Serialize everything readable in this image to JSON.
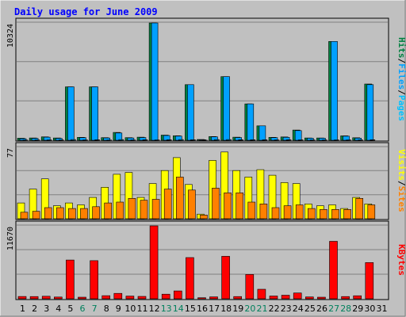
{
  "chart_data": [
    {
      "type": "bar",
      "panel": "top",
      "title": "Daily usage for June 2009",
      "ylim": [
        0,
        10324
      ],
      "y_tick_label": "10324",
      "legend_labels": [
        "Pages",
        "Files",
        "Hits"
      ],
      "legend_placement": "right-vertical",
      "categories": [
        "1",
        "2",
        "3",
        "4",
        "5",
        "6",
        "7",
        "8",
        "9",
        "10",
        "11",
        "12",
        "13",
        "14",
        "15",
        "16",
        "17",
        "18",
        "19",
        "20",
        "21",
        "22",
        "23",
        "24",
        "25",
        "26",
        "27",
        "28",
        "29",
        "30",
        "31"
      ],
      "series": [
        {
          "name": "Hits",
          "values": [
            180,
            200,
            300,
            200,
            4700,
            260,
            4700,
            230,
            690,
            230,
            270,
            10324,
            450,
            400,
            4900,
            70,
            330,
            5600,
            270,
            3200,
            1270,
            260,
            290,
            900,
            200,
            200,
            8700,
            390,
            220,
            4950,
            0
          ]
        },
        {
          "name": "Files",
          "values": [
            140,
            170,
            270,
            170,
            4700,
            230,
            4700,
            200,
            640,
            200,
            240,
            10324,
            420,
            370,
            4900,
            50,
            300,
            5600,
            240,
            3200,
            1270,
            230,
            260,
            850,
            180,
            180,
            8700,
            360,
            190,
            4900,
            0
          ]
        },
        {
          "name": "Pages",
          "values": [
            20,
            25,
            30,
            25,
            60,
            25,
            40,
            20,
            60,
            30,
            40,
            30,
            40,
            60,
            50,
            10,
            60,
            60,
            40,
            50,
            40,
            30,
            40,
            35,
            30,
            25,
            30,
            30,
            25,
            40,
            0
          ]
        }
      ],
      "grid": true
    },
    {
      "type": "bar",
      "panel": "middle",
      "ylim": [
        0,
        77
      ],
      "y_tick_label": "77",
      "legend_labels": [
        "Sites",
        "Visits"
      ],
      "legend_placement": "right-vertical",
      "categories": [
        "1",
        "2",
        "3",
        "4",
        "5",
        "6",
        "7",
        "8",
        "9",
        "10",
        "11",
        "12",
        "13",
        "14",
        "15",
        "16",
        "17",
        "18",
        "19",
        "20",
        "21",
        "22",
        "23",
        "24",
        "25",
        "26",
        "27",
        "28",
        "29",
        "30",
        "31"
      ],
      "series": [
        {
          "name": "Visits",
          "values": [
            17,
            32,
            43,
            14,
            17,
            15,
            23,
            34,
            48,
            50,
            23,
            38,
            52,
            66,
            37,
            5,
            63,
            72,
            52,
            45,
            53,
            47,
            39,
            38,
            16,
            14,
            15,
            11,
            23,
            16,
            0
          ]
        },
        {
          "name": "Sites",
          "values": [
            7,
            8,
            12,
            12,
            11,
            11,
            13,
            17,
            18,
            22,
            20,
            21,
            32,
            45,
            31,
            4,
            33,
            28,
            28,
            18,
            16,
            12,
            14,
            15,
            11,
            10,
            10,
            10,
            22,
            15,
            0
          ]
        }
      ],
      "grid": true
    },
    {
      "type": "bar",
      "panel": "bottom",
      "ylim": [
        0,
        11670
      ],
      "y_tick_label": "11670",
      "legend_labels": [
        "KBytes"
      ],
      "legend_placement": "right-vertical",
      "categories": [
        "1",
        "2",
        "3",
        "4",
        "5",
        "6",
        "7",
        "8",
        "9",
        "10",
        "11",
        "12",
        "13",
        "14",
        "15",
        "16",
        "17",
        "18",
        "19",
        "20",
        "21",
        "22",
        "23",
        "24",
        "25",
        "26",
        "27",
        "28",
        "29",
        "30",
        "31"
      ],
      "series": [
        {
          "name": "KBytes",
          "values": [
            370,
            350,
            400,
            280,
            6200,
            260,
            6100,
            500,
            860,
            430,
            380,
            11670,
            740,
            1250,
            6600,
            170,
            300,
            6800,
            360,
            3900,
            1520,
            450,
            570,
            930,
            290,
            250,
            9200,
            350,
            480,
            5800,
            0
          ]
        }
      ],
      "grid": true
    }
  ],
  "colors": {
    "background": "#c0c0c0",
    "title": "#0000ff",
    "pages": "#00c0ff",
    "files": "#00a0ff",
    "hits": "#008040",
    "visits": "#ffff00",
    "sites": "#ff8000",
    "kbytes": "#ff0000",
    "weekend_label": "#00805c",
    "weekday_label": "#000000"
  },
  "weekend_days": [
    6,
    7,
    13,
    14,
    20,
    21,
    27,
    28
  ]
}
